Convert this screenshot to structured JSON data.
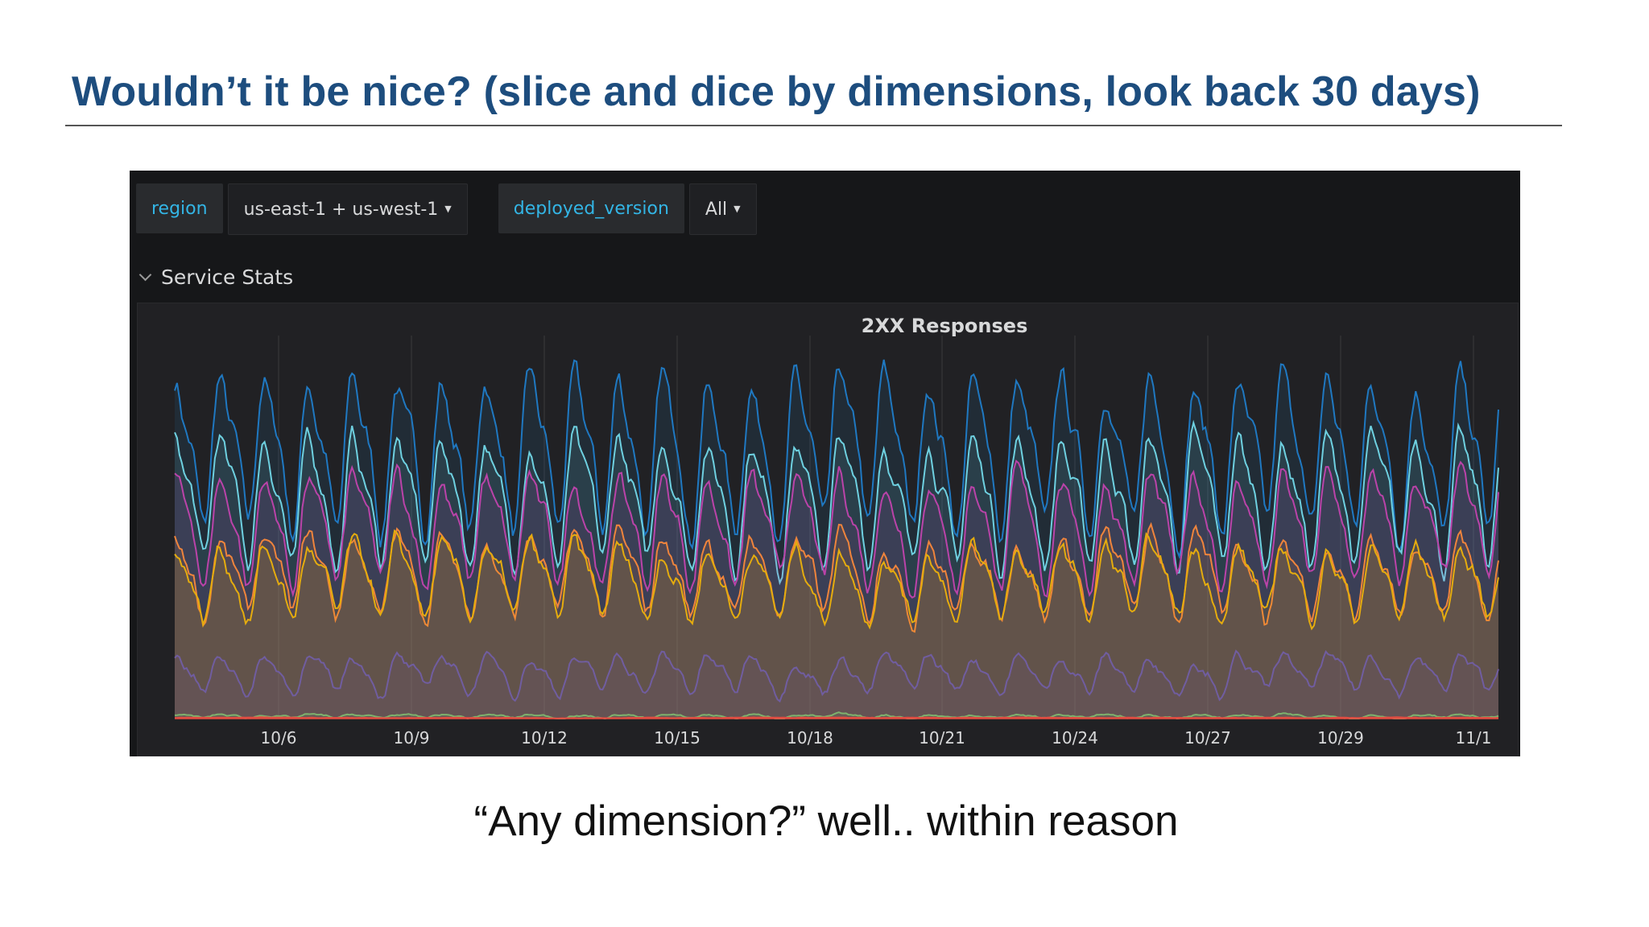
{
  "slide": {
    "title": "Wouldn’t it be nice? (slice and dice by dimensions, look back 30 days)",
    "subtitle": "“Any dimension?” well.. within reason"
  },
  "dashboard": {
    "variables": [
      {
        "label": "region",
        "value": "us-east-1 + us-west-1"
      },
      {
        "label": "deployed_version",
        "value": "All"
      }
    ],
    "row_title": "Service Stats",
    "panel_title": "2XX Responses",
    "colors": {
      "background": "#161719",
      "panel": "#212124",
      "variable_label": "#33b5e5",
      "grid": "#3a3a3d"
    }
  },
  "chart_data": {
    "type": "area",
    "title": "2XX Responses",
    "x_tick_labels": [
      "10/6",
      "10/9",
      "10/12",
      "10/15",
      "10/18",
      "10/21",
      "10/24",
      "10/27",
      "10/29",
      "11/1"
    ],
    "stacked": false,
    "grid": "vertical-only",
    "legend": "none",
    "y_axis_labels": "none",
    "series": [
      {
        "color": "#1f78c1",
        "base": 0.7,
        "amp": 0.17,
        "noise": 0.05,
        "period_days": 1
      },
      {
        "color": "#6ed0e0",
        "base": 0.58,
        "amp": 0.14,
        "noise": 0.04,
        "period_days": 1
      },
      {
        "color": "#ba43a9",
        "base": 0.5,
        "amp": 0.12,
        "noise": 0.04,
        "period_days": 1
      },
      {
        "color": "#ef843c",
        "base": 0.38,
        "amp": 0.09,
        "noise": 0.035,
        "period_days": 1
      },
      {
        "color": "#e5ac0e",
        "base": 0.36,
        "amp": 0.08,
        "noise": 0.035,
        "period_days": 1
      },
      {
        "color": "#705da0",
        "base": 0.12,
        "amp": 0.04,
        "noise": 0.02,
        "period_days": 1
      },
      {
        "color": "#7eb26d",
        "base": 0.006,
        "amp": 0.004,
        "noise": 0.004,
        "period_days": 1
      },
      {
        "color": "#e24d42",
        "base": 0.002,
        "amp": 0.0,
        "noise": 0.001,
        "period_days": 1
      }
    ]
  }
}
